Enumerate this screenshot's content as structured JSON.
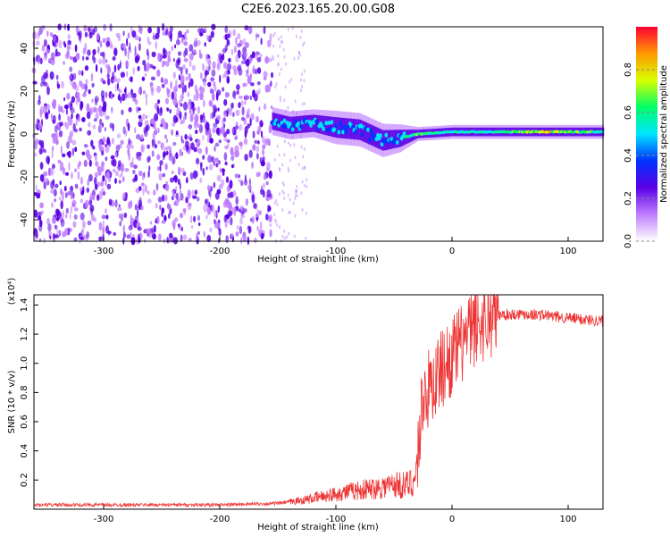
{
  "chart_data": [
    {
      "type": "heatmap",
      "title": "C2E6.2023.165.20.00.G08",
      "xlabel": "Height of straight line (km)",
      "ylabel": "Frequency (Hz)",
      "xlim": [
        -360,
        130
      ],
      "ylim": [
        -50,
        50
      ],
      "xticks": [
        -300,
        -200,
        -100,
        0,
        100
      ],
      "yticks": [
        -40,
        -20,
        0,
        20,
        40
      ],
      "colorbar": {
        "label": "Normalized spectral amplitude",
        "range": [
          0.0,
          1.0
        ],
        "ticks": [
          0.0,
          0.2,
          0.4,
          0.6,
          0.8
        ],
        "colors": [
          "#ffffff",
          "#c07fff",
          "#5a00e6",
          "#0033ff",
          "#00e5ff",
          "#00ff66",
          "#d8ff00",
          "#ff9900",
          "#ff0033"
        ]
      },
      "noise_region_x": [
        -360,
        -155
      ],
      "signal_track": [
        {
          "x": -155,
          "freq": 6,
          "spread": 5,
          "amp": 0.35
        },
        {
          "x": -140,
          "freq": 4,
          "spread": 5,
          "amp": 0.45
        },
        {
          "x": -120,
          "freq": 5,
          "spread": 5,
          "amp": 0.45
        },
        {
          "x": -100,
          "freq": 3,
          "spread": 6,
          "amp": 0.45
        },
        {
          "x": -80,
          "freq": 2,
          "spread": 6,
          "amp": 0.45
        },
        {
          "x": -60,
          "freq": -3,
          "spread": 6,
          "amp": 0.4
        },
        {
          "x": -45,
          "freq": -2,
          "spread": 5,
          "amp": 0.45
        },
        {
          "x": -30,
          "freq": 0,
          "spread": 2.5,
          "amp": 0.6
        },
        {
          "x": 0,
          "freq": 1,
          "spread": 2.5,
          "amp": 0.55
        },
        {
          "x": 40,
          "freq": 1,
          "spread": 2.5,
          "amp": 0.55
        },
        {
          "x": 80,
          "freq": 1,
          "spread": 2.5,
          "amp": 0.75
        },
        {
          "x": 130,
          "freq": 1,
          "spread": 2.5,
          "amp": 0.55
        }
      ]
    },
    {
      "type": "line",
      "xlabel": "Height of straight line (km)",
      "ylabel": "SNR (10 * v/v)",
      "scale_label": "(x10⁴)",
      "xlim": [
        -360,
        130
      ],
      "ylim": [
        0,
        1.47
      ],
      "xticks": [
        -300,
        -200,
        -100,
        0,
        100
      ],
      "yticks": [
        0.2,
        0.4,
        0.6,
        0.8,
        1.0,
        1.2,
        1.4
      ],
      "line_color": "#ee3333",
      "x": [
        -360,
        -300,
        -200,
        -150,
        -130,
        -110,
        -90,
        -70,
        -50,
        -40,
        -32,
        -28,
        -25,
        -20,
        -10,
        0,
        10,
        20,
        30,
        40,
        60,
        80,
        100,
        130
      ],
      "y": [
        0.03,
        0.03,
        0.03,
        0.04,
        0.06,
        0.09,
        0.12,
        0.14,
        0.17,
        0.16,
        0.2,
        0.5,
        0.8,
        0.82,
        0.95,
        1.05,
        1.15,
        1.25,
        1.3,
        1.33,
        1.34,
        1.33,
        1.31,
        1.29
      ]
    }
  ]
}
